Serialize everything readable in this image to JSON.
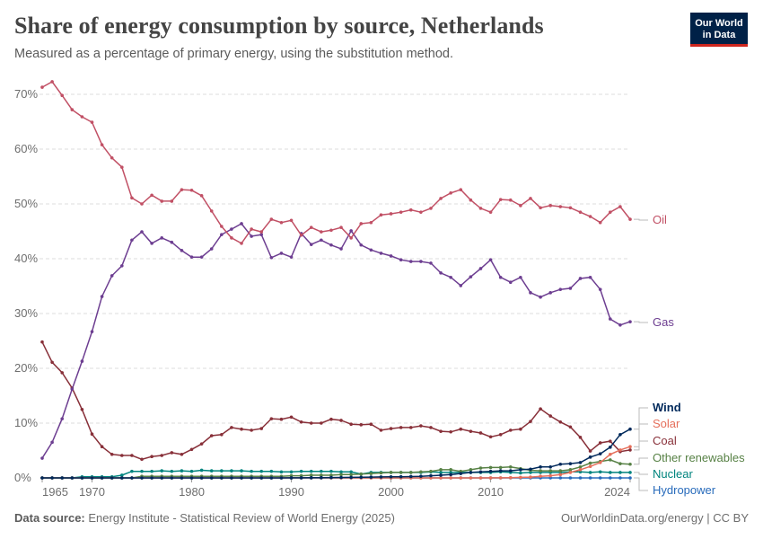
{
  "header": {
    "title": "Share of energy consumption by source, Netherlands",
    "subtitle": "Measured as a percentage of primary energy, using the substitution method.",
    "logo_text": "Our World in Data"
  },
  "footer": {
    "source_label": "Data source:",
    "source_text": "Energy Institute - Statistical Review of World Energy (2025)",
    "credit": "OurWorldinData.org/energy | CC BY"
  },
  "chart_data": {
    "type": "line",
    "title": "Share of energy consumption by source, Netherlands",
    "xlabel": "",
    "ylabel": "",
    "x_start": 1965,
    "x_end": 2024,
    "xticks": [
      "1965",
      "1970",
      "1980",
      "1990",
      "2000",
      "2010",
      "2024"
    ],
    "yticks": [
      "0%",
      "10%",
      "20%",
      "30%",
      "40%",
      "50%",
      "60%",
      "70%"
    ],
    "ylim": [
      0,
      70
    ],
    "grid": "horizontal dashed",
    "legend": "right (line-end labels)",
    "series": [
      {
        "name": "Oil",
        "color": "#c15065",
        "values": [
          71.3,
          72.3,
          69.8,
          67.2,
          65.9,
          64.9,
          60.8,
          58.4,
          56.7,
          51.1,
          50.0,
          51.6,
          50.5,
          50.5,
          52.6,
          52.5,
          51.5,
          48.7,
          45.9,
          43.8,
          42.8,
          45.4,
          44.9,
          47.2,
          46.6,
          47.0,
          44.3,
          45.7,
          44.9,
          45.2,
          45.7,
          43.8,
          46.4,
          46.6,
          48.0,
          48.2,
          48.5,
          48.9,
          48.5,
          49.2,
          51.0,
          52.0,
          52.6,
          50.7,
          49.2,
          48.5,
          50.8,
          50.7,
          49.7,
          51.0,
          49.3,
          49.7,
          49.5,
          49.3,
          48.5,
          47.7,
          46.6,
          48.5,
          49.5,
          47.2
        ]
      },
      {
        "name": "Gas",
        "color": "#6d3e91",
        "values": [
          3.6,
          6.5,
          10.8,
          16.2,
          21.3,
          26.7,
          33.1,
          36.9,
          38.7,
          43.4,
          44.9,
          42.8,
          43.8,
          43.0,
          41.5,
          40.3,
          40.3,
          41.8,
          44.4,
          45.4,
          46.4,
          44.1,
          44.4,
          40.2,
          41.0,
          40.3,
          44.6,
          42.6,
          43.4,
          42.5,
          41.8,
          45.1,
          42.5,
          41.6,
          41.0,
          40.5,
          39.8,
          39.5,
          39.5,
          39.2,
          37.4,
          36.6,
          35.1,
          36.7,
          38.2,
          39.8,
          36.6,
          35.7,
          36.6,
          33.8,
          33.0,
          33.8,
          34.4,
          34.6,
          36.4,
          36.6,
          34.4,
          29.0,
          27.9,
          28.5
        ]
      },
      {
        "name": "Wind",
        "color": "#00295b",
        "values": [
          0,
          0,
          0,
          0,
          0,
          0,
          0,
          0,
          0,
          0,
          0,
          0,
          0,
          0,
          0,
          0,
          0,
          0,
          0,
          0,
          0,
          0,
          0,
          0,
          0,
          0.01,
          0.02,
          0.03,
          0.05,
          0.07,
          0.08,
          0.1,
          0.12,
          0.15,
          0.18,
          0.2,
          0.22,
          0.25,
          0.3,
          0.4,
          0.5,
          0.6,
          0.8,
          1.0,
          1.1,
          1.2,
          1.3,
          1.3,
          1.5,
          1.6,
          2.0,
          2.0,
          2.5,
          2.6,
          2.8,
          3.8,
          4.4,
          5.6,
          7.9,
          8.9
        ]
      },
      {
        "name": "Solar",
        "color": "#e56e5a",
        "values": [
          0,
          0,
          0,
          0,
          0,
          0,
          0,
          0,
          0,
          0,
          0,
          0,
          0,
          0,
          0,
          0,
          0,
          0,
          0,
          0,
          0,
          0,
          0,
          0,
          0,
          0,
          0,
          0,
          0,
          0,
          0,
          0,
          0,
          0,
          0,
          0,
          0,
          0,
          0,
          0,
          0,
          0,
          0,
          0,
          0,
          0.01,
          0.02,
          0.05,
          0.1,
          0.15,
          0.3,
          0.4,
          0.6,
          1.0,
          1.5,
          2.1,
          2.8,
          4.3,
          5.1,
          5.7
        ]
      },
      {
        "name": "Coal",
        "color": "#883039",
        "values": [
          24.8,
          21.1,
          19.2,
          16.4,
          12.5,
          8.0,
          5.7,
          4.3,
          4.1,
          4.1,
          3.4,
          3.9,
          4.1,
          4.6,
          4.3,
          5.2,
          6.2,
          7.7,
          7.9,
          9.2,
          8.9,
          8.7,
          9.0,
          10.8,
          10.7,
          11.1,
          10.2,
          10.0,
          10.0,
          10.7,
          10.5,
          9.8,
          9.7,
          9.8,
          8.7,
          9.0,
          9.2,
          9.2,
          9.5,
          9.2,
          8.5,
          8.4,
          8.9,
          8.5,
          8.2,
          7.5,
          7.9,
          8.7,
          8.9,
          10.3,
          12.6,
          11.3,
          10.2,
          9.3,
          7.4,
          4.9,
          6.4,
          6.7,
          4.8,
          5.1
        ]
      },
      {
        "name": "Other renewables",
        "color": "#578145",
        "values": [
          0,
          0,
          0,
          0,
          0,
          0,
          0,
          0,
          0,
          0,
          0.3,
          0.3,
          0.3,
          0.3,
          0.3,
          0.3,
          0.3,
          0.3,
          0.3,
          0.3,
          0.3,
          0.3,
          0.3,
          0.3,
          0.3,
          0.4,
          0.4,
          0.5,
          0.5,
          0.5,
          0.6,
          0.6,
          0.7,
          0.8,
          0.9,
          1.0,
          1.0,
          1.0,
          1.1,
          1.2,
          1.5,
          1.5,
          1.2,
          1.5,
          1.8,
          1.9,
          1.9,
          2.0,
          1.7,
          1.4,
          1.3,
          1.3,
          1.3,
          1.5,
          2.0,
          2.7,
          3.0,
          3.3,
          2.6,
          2.5
        ]
      },
      {
        "name": "Nuclear",
        "color": "#00847e",
        "values": [
          0,
          0,
          0,
          0,
          0.2,
          0.2,
          0.2,
          0.2,
          0.5,
          1.2,
          1.2,
          1.2,
          1.3,
          1.2,
          1.3,
          1.2,
          1.4,
          1.3,
          1.3,
          1.3,
          1.3,
          1.2,
          1.2,
          1.2,
          1.1,
          1.1,
          1.2,
          1.2,
          1.2,
          1.2,
          1.1,
          1.1,
          0.7,
          1.0,
          1.0,
          1.0,
          1.0,
          1.0,
          1.0,
          1.1,
          1.0,
          1.0,
          1.0,
          1.0,
          1.0,
          1.0,
          1.1,
          1.0,
          0.9,
          1.0,
          1.0,
          1.0,
          1.0,
          1.1,
          1.1,
          1.0,
          1.1,
          1.0,
          1.0,
          1.0
        ]
      },
      {
        "name": "Hydropower",
        "color": "#286bbb",
        "values": [
          0,
          0,
          0,
          0,
          0,
          0,
          0,
          0,
          0,
          0,
          0,
          0,
          0,
          0,
          0,
          0,
          0,
          0,
          0,
          0,
          0,
          0,
          0,
          0,
          0,
          0,
          0,
          0,
          0,
          0,
          0,
          0,
          0,
          0,
          0,
          0,
          0,
          0,
          0,
          0,
          0,
          0,
          0,
          0,
          0,
          0,
          0,
          0,
          0,
          0,
          0,
          0,
          0,
          0,
          0,
          0,
          0,
          0,
          0,
          0
        ]
      }
    ]
  }
}
